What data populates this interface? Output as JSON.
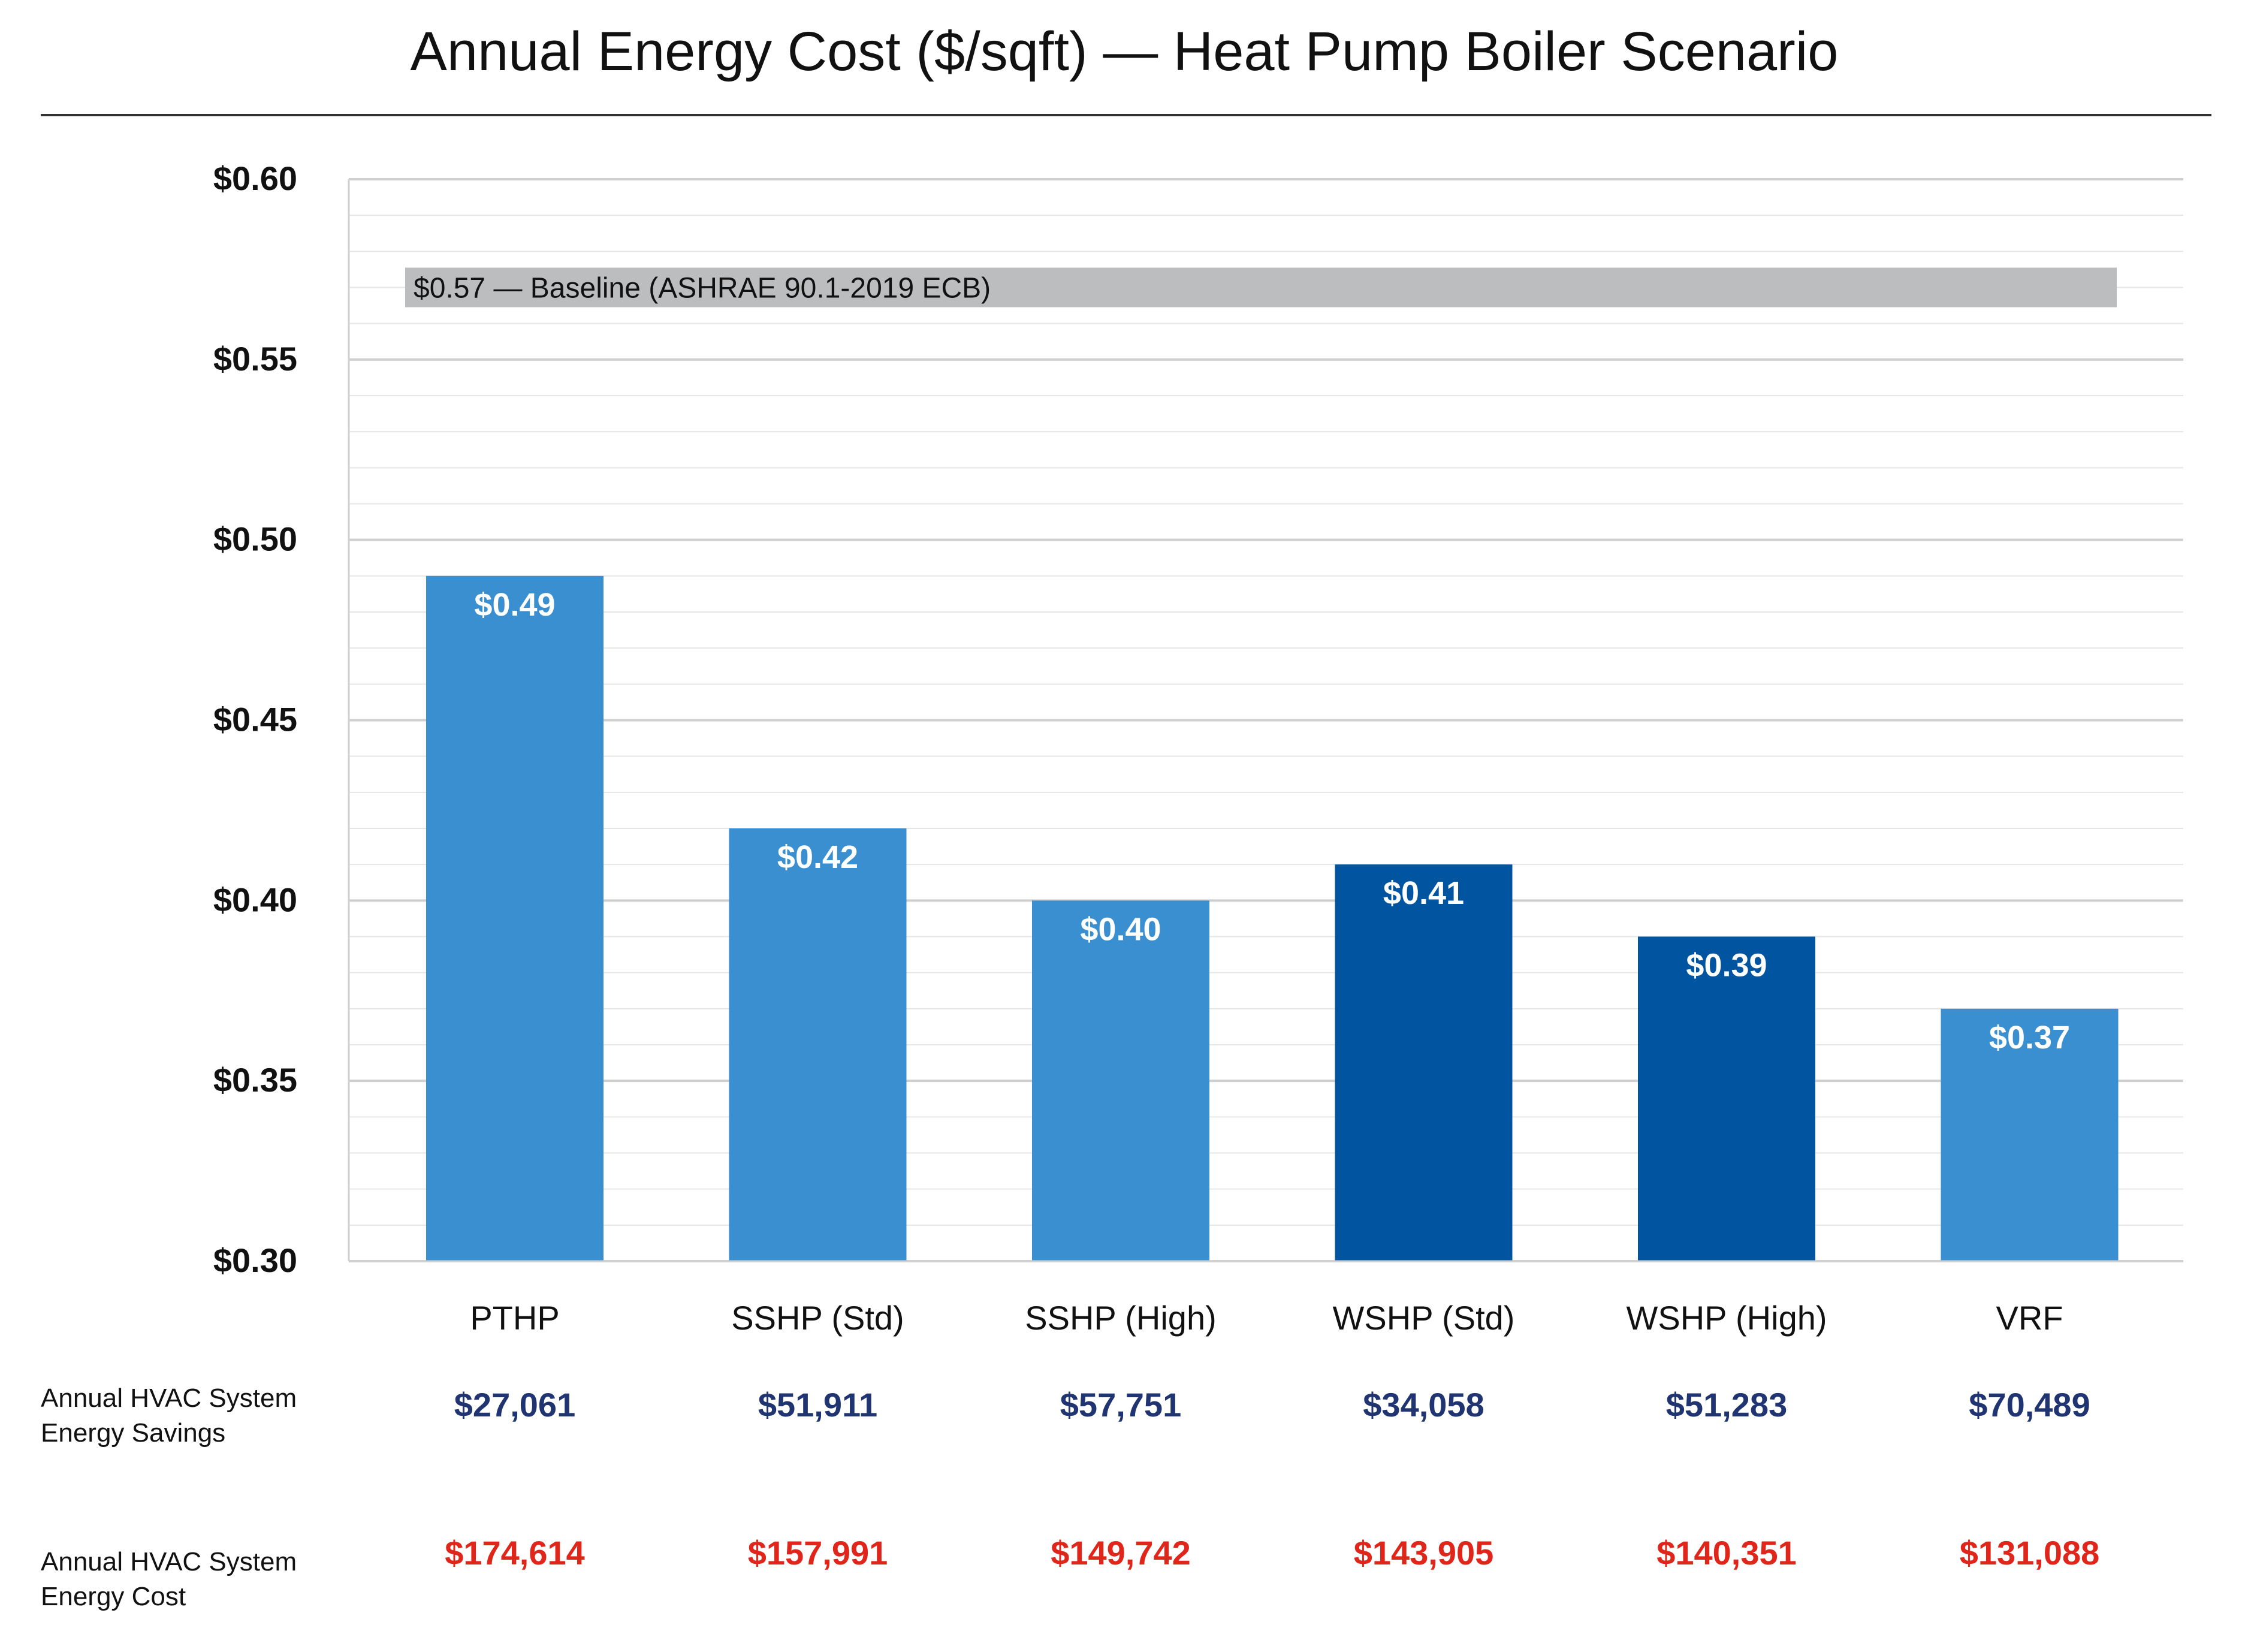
{
  "chart_data": {
    "type": "bar",
    "title": "Annual Energy Cost ($/sqft) — Heat Pump Boiler Scenario",
    "xlabel": "",
    "ylabel": "",
    "ylim": [
      0.3,
      0.6
    ],
    "y_ticks": [
      "$0.30",
      "$0.35",
      "$0.40",
      "$0.45",
      "$0.50",
      "$0.55",
      "$0.60"
    ],
    "y_tick_values": [
      0.3,
      0.35,
      0.4,
      0.45,
      0.5,
      0.55,
      0.6
    ],
    "grid": true,
    "legend": "none",
    "categories": [
      "PTHP",
      "SSHP (Std)",
      "SSHP (High)",
      "WSHP (Std)",
      "WSHP (High)",
      "VRF"
    ],
    "values": [
      0.49,
      0.42,
      0.4,
      0.41,
      0.39,
      0.37
    ],
    "value_labels": [
      "$0.49",
      "$0.42",
      "$0.40",
      "$0.41",
      "$0.39",
      "$0.37"
    ],
    "bar_colors": [
      "#3a8fd0",
      "#3a8fd0",
      "#3a8fd0",
      "#0054a0",
      "#0054a0",
      "#3a8fd0"
    ],
    "baseline": {
      "value": 0.57,
      "label": "$0.57 — Baseline (ASHRAE 90.1-2019 ECB)",
      "color": "#bcbdbf"
    },
    "table_rows": [
      {
        "label_lines": [
          "Annual HVAC System",
          "Energy Savings"
        ],
        "color": "#1f3470",
        "values": [
          "$27,061",
          "$51,911",
          "$57,751",
          "$34,058",
          "$51,283",
          "$70,489"
        ]
      },
      {
        "label_lines": [
          "Annual HVAC System",
          "Energy Cost"
        ],
        "color": "#e0251b",
        "values": [
          "$174,614",
          "$157,991",
          "$149,742",
          "$143,905",
          "$140,351",
          "$131,088"
        ]
      }
    ]
  }
}
